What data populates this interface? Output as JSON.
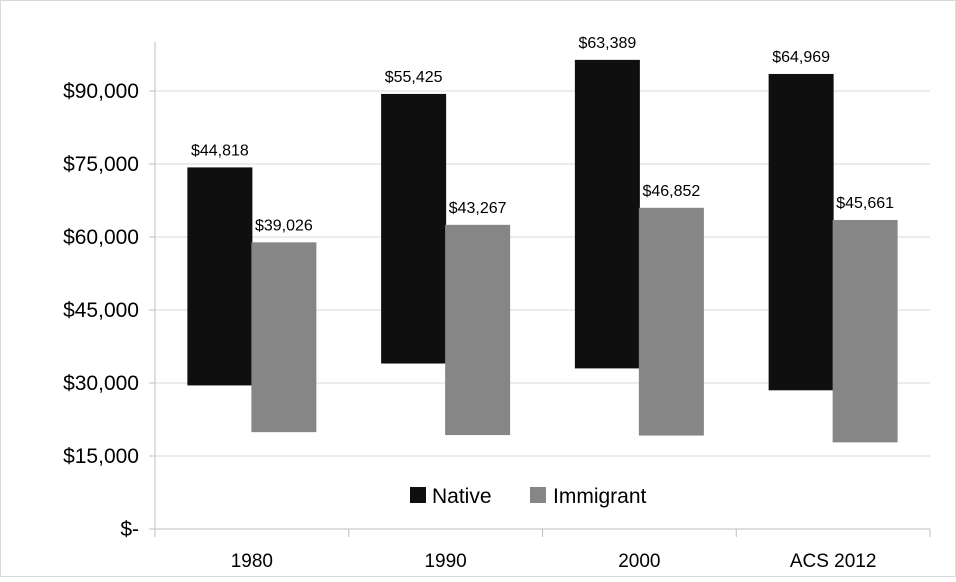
{
  "chart_data": {
    "type": "bar",
    "categories": [
      "1980",
      "1990",
      "2000",
      "ACS 2012"
    ],
    "y_tick_labels": [
      "$-",
      "$15,000",
      "$30,000",
      "$45,000",
      "$60,000",
      "$75,000",
      "$90,000"
    ],
    "y_ticks": [
      0,
      15000,
      30000,
      45000,
      60000,
      75000,
      90000
    ],
    "ylim": [
      0,
      105000
    ],
    "title": "",
    "xlabel": "",
    "ylabel": "",
    "grid": true,
    "legend_position": "bottom-center",
    "series": [
      {
        "name": "Native",
        "color": "#0f0f0f",
        "values": [
          44818,
          55425,
          63389,
          64969
        ],
        "range_low": [
          29500,
          34000,
          33000,
          28500
        ],
        "range_high": [
          74300,
          89400,
          96400,
          93500
        ],
        "data_labels": [
          "$44,818",
          "$55,425",
          "$63,389",
          "$64,969"
        ]
      },
      {
        "name": "Immigrant",
        "color": "#868686",
        "values": [
          39026,
          43267,
          46852,
          45661
        ],
        "range_low": [
          19900,
          19300,
          19200,
          17800
        ],
        "range_high": [
          58900,
          62500,
          66000,
          63500
        ],
        "data_labels": [
          "$39,026",
          "$43,267",
          "$46,852",
          "$45,661"
        ]
      }
    ]
  }
}
